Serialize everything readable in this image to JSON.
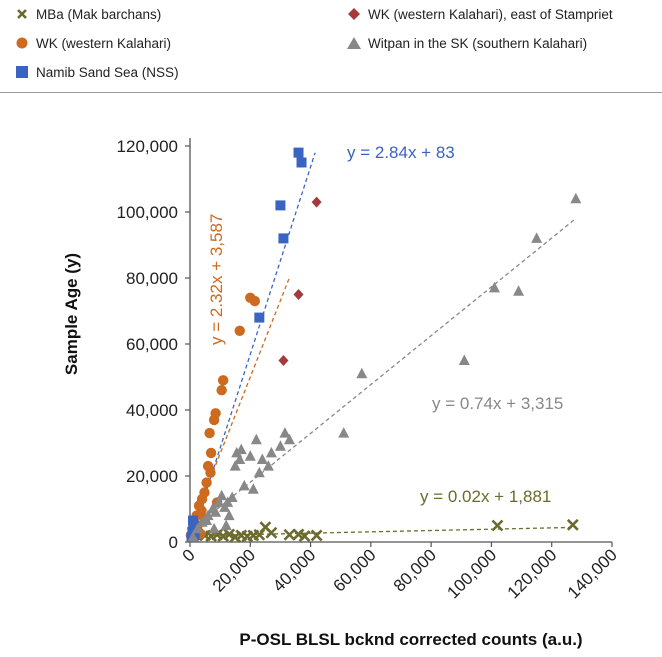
{
  "legend": {
    "items": [
      {
        "label": "MBa (Mak barchans)",
        "marker": "x",
        "color": "#6b6b2f"
      },
      {
        "label": "WK (western Kalahari)",
        "marker": "circle",
        "color": "#cc6a1f"
      },
      {
        "label": "Namib Sand Sea (NSS)",
        "marker": "square",
        "color": "#3a64c1"
      },
      {
        "label": "WK (western Kalahari), east of Stampriet",
        "marker": "diamond",
        "color": "#a53a3a"
      },
      {
        "label": "Witpan in the SK (southern Kalahari)",
        "marker": "triangle",
        "color": "#888888"
      }
    ]
  },
  "chart_data": {
    "type": "scatter",
    "title": "",
    "xlabel": "P-OSL BLSL bcknd corrected counts (a.u.)",
    "ylabel": "Sample  Age (y)",
    "xlim": [
      0,
      140000
    ],
    "ylim": [
      0,
      120000
    ],
    "x_ticks": [
      "0",
      "20,000",
      "40,000",
      "60,000",
      "80,000",
      "100,000",
      "120,000",
      "140,000"
    ],
    "y_ticks": [
      "0",
      "20,000",
      "40,000",
      "60,000",
      "80,000",
      "100,000",
      "120,000"
    ],
    "x_tick_values": [
      0,
      20000,
      40000,
      60000,
      80000,
      100000,
      120000,
      140000
    ],
    "y_tick_values": [
      0,
      20000,
      40000,
      60000,
      80000,
      100000,
      120000
    ],
    "grid": false,
    "legend_position": "top",
    "series": [
      {
        "name": "MBa (Mak barchans)",
        "marker": "x",
        "color": "#6b6b2f",
        "points": [
          [
            1000,
            1500
          ],
          [
            2500,
            2500
          ],
          [
            5000,
            2000
          ],
          [
            7000,
            1800
          ],
          [
            9000,
            2200
          ],
          [
            11000,
            1800
          ],
          [
            13000,
            2300
          ],
          [
            15000,
            1500
          ],
          [
            17000,
            2000
          ],
          [
            19000,
            1700
          ],
          [
            21000,
            2000
          ],
          [
            23000,
            2200
          ],
          [
            25000,
            4500
          ],
          [
            27000,
            2800
          ],
          [
            33000,
            2200
          ],
          [
            36000,
            2300
          ],
          [
            38000,
            1800
          ],
          [
            42000,
            2000
          ],
          [
            102000,
            5000
          ],
          [
            127000,
            5200
          ]
        ],
        "trendline": {
          "slope": 0.02,
          "intercept": 1881,
          "equation": "y = 0.02x + 1,881",
          "x_range": [
            0,
            128000
          ]
        }
      },
      {
        "name": "WK (western Kalahari)",
        "marker": "circle",
        "color": "#cc6a1f",
        "points": [
          [
            300,
            2000
          ],
          [
            800,
            4000
          ],
          [
            1500,
            6000
          ],
          [
            2200,
            8000
          ],
          [
            3000,
            11000
          ],
          [
            4000,
            13000
          ],
          [
            4800,
            15000
          ],
          [
            5500,
            18000
          ],
          [
            6000,
            23000
          ],
          [
            7000,
            27000
          ],
          [
            6500,
            33000
          ],
          [
            8000,
            37000
          ],
          [
            8500,
            39000
          ],
          [
            10500,
            46000
          ],
          [
            11000,
            49000
          ],
          [
            16500,
            64000
          ],
          [
            20000,
            74000
          ],
          [
            21500,
            73000
          ],
          [
            2500,
            5000
          ],
          [
            3800,
            9500
          ],
          [
            6800,
            21000
          ],
          [
            9000,
            12000
          ],
          [
            5000,
            7000
          ],
          [
            3500,
            2500
          ]
        ],
        "trendline": {
          "slope": 2.32,
          "intercept": 3587,
          "equation": "y = 2.32x + 3,587",
          "x_range": [
            0,
            33000
          ]
        }
      },
      {
        "name": "Namib Sand Sea (NSS)",
        "marker": "square",
        "color": "#3a64c1",
        "points": [
          [
            500,
            1500
          ],
          [
            800,
            3000
          ],
          [
            1200,
            5000
          ],
          [
            1000,
            6500
          ],
          [
            1500,
            2000
          ],
          [
            23000,
            68000
          ],
          [
            30000,
            102000
          ],
          [
            31000,
            92000
          ],
          [
            36000,
            118000
          ],
          [
            37000,
            115000
          ]
        ],
        "trendline": {
          "slope": 2.84,
          "intercept": 83,
          "equation": "y = 2.84x + 83",
          "x_range": [
            0,
            41500
          ]
        }
      },
      {
        "name": "WK (western Kalahari), east of Stampriet",
        "marker": "diamond",
        "color": "#a53a3a",
        "points": [
          [
            31000,
            55000
          ],
          [
            36000,
            75000
          ],
          [
            42000,
            103000
          ]
        ],
        "trendline": null
      },
      {
        "name": "Witpan in the SK (southern Kalahari)",
        "marker": "triangle",
        "color": "#888888",
        "points": [
          [
            1000,
            1500
          ],
          [
            2500,
            4000
          ],
          [
            4000,
            6000
          ],
          [
            6000,
            8000
          ],
          [
            7500,
            10000
          ],
          [
            8500,
            9000
          ],
          [
            9500,
            12000
          ],
          [
            10500,
            14000
          ],
          [
            11500,
            10500
          ],
          [
            12500,
            12000
          ],
          [
            13000,
            8000
          ],
          [
            14000,
            13500
          ],
          [
            15000,
            23000
          ],
          [
            15500,
            27000
          ],
          [
            16500,
            25000
          ],
          [
            17000,
            28000
          ],
          [
            18000,
            17000
          ],
          [
            20000,
            26000
          ],
          [
            21000,
            16000
          ],
          [
            22000,
            31000
          ],
          [
            23000,
            21000
          ],
          [
            24000,
            25000
          ],
          [
            26000,
            23000
          ],
          [
            27000,
            27000
          ],
          [
            30000,
            29000
          ],
          [
            31500,
            33000
          ],
          [
            33000,
            31000
          ],
          [
            51000,
            33000
          ],
          [
            57000,
            51000
          ],
          [
            91000,
            55000
          ],
          [
            101000,
            77000
          ],
          [
            109000,
            76000
          ],
          [
            115000,
            92000
          ],
          [
            128000,
            104000
          ],
          [
            5500,
            6500
          ],
          [
            8000,
            4000
          ],
          [
            12000,
            5000
          ]
        ],
        "trendline": {
          "slope": 0.74,
          "intercept": 3315,
          "equation": "y = 0.74x + 3,315",
          "x_range": [
            0,
            128000
          ]
        }
      }
    ]
  }
}
